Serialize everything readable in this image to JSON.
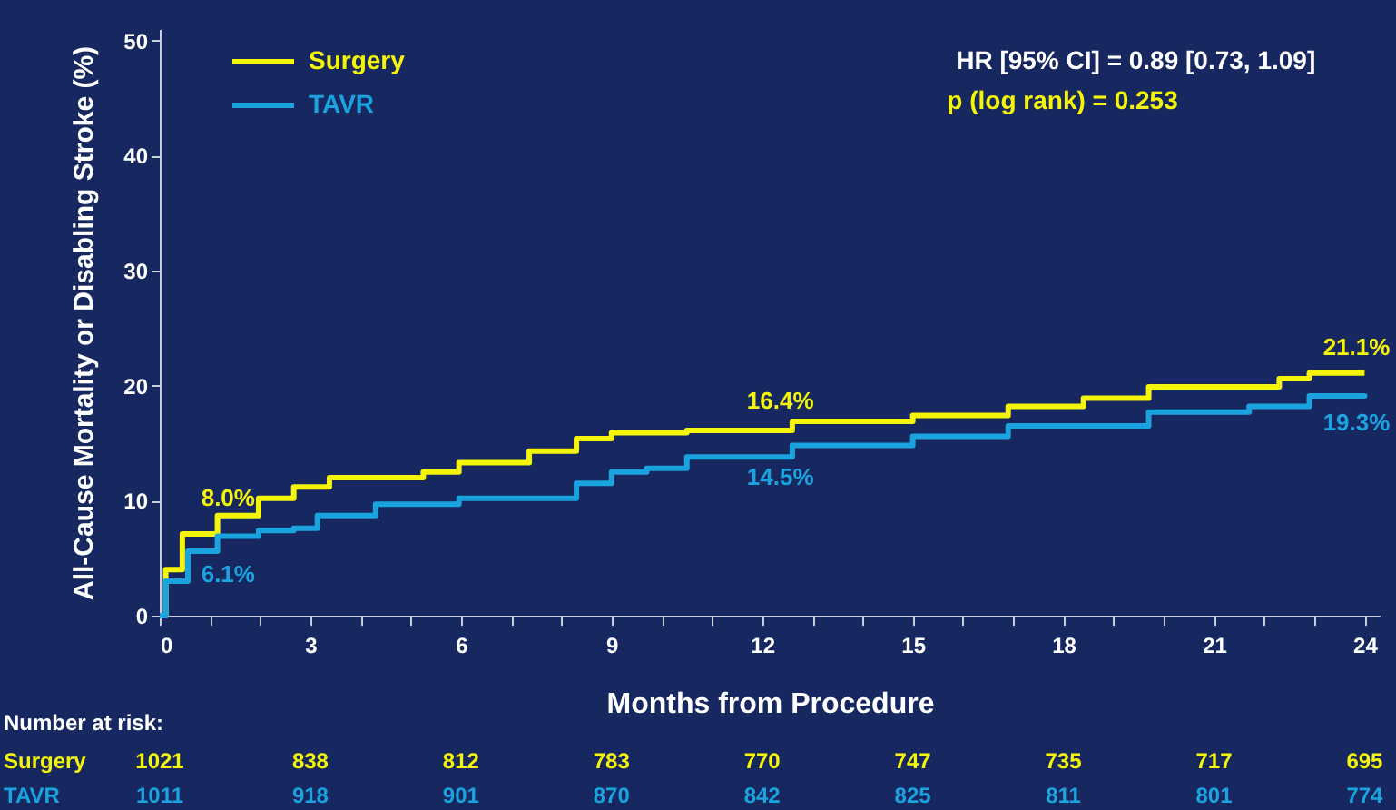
{
  "chart_data": {
    "type": "step",
    "xlabel": "Months from Procedure",
    "ylabel": "All-Cause Mortality or Disabling Stroke (%)",
    "series": [
      {
        "name": "Surgery",
        "color": "#f5f50a",
        "x": [
          0,
          0.12,
          0.45,
          1.15,
          1.97,
          2.67,
          3.38,
          5.25,
          5.96,
          7.36,
          8.3,
          9.0,
          10.5,
          12.6,
          15.0,
          16.9,
          18.4,
          19.7,
          22.3,
          22.9,
          24
        ],
        "values": [
          0,
          4.0,
          7.1,
          8.7,
          10.2,
          11.2,
          12.0,
          12.5,
          13.3,
          14.3,
          15.4,
          15.9,
          16.1,
          16.9,
          17.4,
          18.2,
          18.9,
          19.9,
          20.6,
          21.1,
          21.1
        ]
      },
      {
        "name": "TAVR",
        "color": "#1ba3e0",
        "x": [
          0,
          0.12,
          0.56,
          1.15,
          1.97,
          2.67,
          3.14,
          4.3,
          5.96,
          7.1,
          8.3,
          9.0,
          9.7,
          10.5,
          12.6,
          15.0,
          16.9,
          19.7,
          21.7,
          22.9,
          24
        ],
        "values": [
          0,
          3.0,
          5.6,
          6.9,
          7.4,
          7.6,
          8.7,
          9.7,
          10.2,
          10.2,
          11.5,
          12.5,
          12.8,
          13.8,
          14.8,
          15.6,
          16.5,
          17.7,
          18.2,
          19.1,
          19.3
        ]
      }
    ],
    "xlim": [
      0,
      24.3
    ],
    "ylim": [
      0,
      51
    ],
    "xticks": [
      0,
      {
        "value": 1,
        "label": null
      },
      {
        "value": 2,
        "label": null
      },
      3,
      {
        "value": 4,
        "label": null
      },
      {
        "value": 5,
        "label": null
      },
      6,
      {
        "value": 7,
        "label": null
      },
      {
        "value": 8,
        "label": null
      },
      9,
      {
        "value": 10,
        "label": null
      },
      {
        "value": 11,
        "label": null
      },
      12,
      {
        "value": 13,
        "label": null
      },
      {
        "value": 14,
        "label": null
      },
      15,
      {
        "value": 16,
        "label": null
      },
      {
        "value": 17,
        "label": null
      },
      18,
      {
        "value": 19,
        "label": null
      },
      {
        "value": 20,
        "label": null
      },
      21,
      {
        "value": 22,
        "label": null
      },
      {
        "value": 23,
        "label": null
      },
      24
    ],
    "yticks": [
      0,
      10,
      20,
      30,
      40,
      50
    ],
    "grid": false,
    "legend": "top left",
    "marker": "none",
    "line_style": "solid",
    "annotations": [
      "HR [95% CI] = 0.89 [0.73, 1.09]",
      "p (log rank) = 0.253",
      "Number at risk:",
      {
        "text": "8.0%",
        "x": 1,
        "y": 8.0
      },
      {
        "text": "6.1%",
        "x": 1,
        "y": 6.1
      },
      {
        "text": "16.4%",
        "x": 12,
        "y": 16.4
      },
      {
        "text": "14.5%",
        "x": 12,
        "y": 14.5
      },
      {
        "text": "21.1%",
        "x": 24,
        "y": 21.1
      },
      {
        "text": "19.3%",
        "x": 24,
        "y": 19.3
      },
      "1021",
      "838",
      "812",
      "783",
      "770",
      "747",
      "735",
      "717",
      "695",
      "1011",
      "918",
      "901",
      "870",
      "842",
      "825",
      "811",
      "801",
      "774"
    ]
  }
}
